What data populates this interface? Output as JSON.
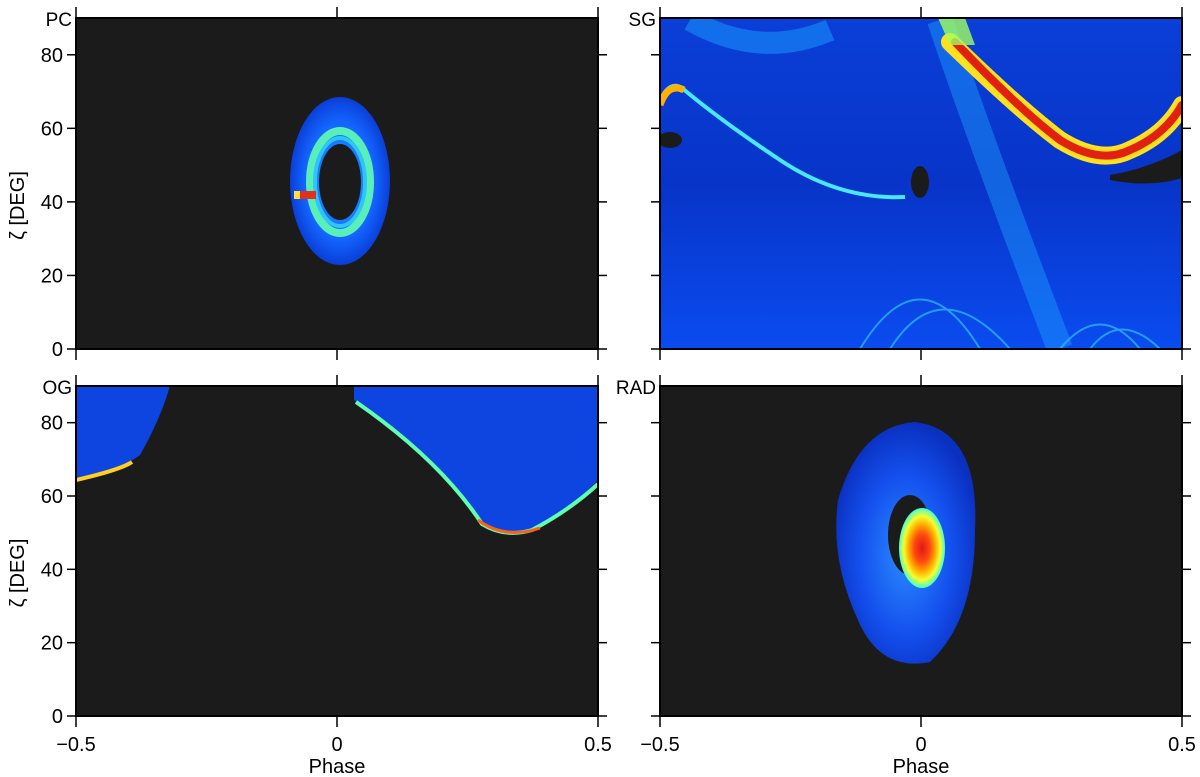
{
  "chart_data": [
    {
      "type": "heatmap",
      "panel_label": "PC",
      "xlabel": "",
      "ylabel": "ζ [DEG]",
      "xlim": [
        -0.5,
        0.5
      ],
      "ylim": [
        0,
        90
      ],
      "x_ticks": [
        -0.5,
        0,
        0.5
      ],
      "x_tick_labels": [],
      "y_ticks": [
        0,
        20,
        40,
        60,
        80
      ],
      "y_tick_labels": [
        "0",
        "20",
        "40",
        "60",
        "80"
      ],
      "background_color": "#1b1b1b",
      "features": [
        {
          "kind": "ellipse-ring",
          "phase_center": 0.005,
          "zeta_center": 44,
          "phase_radius": 0.09,
          "zeta_radius": 25,
          "intensity": 0.35
        },
        {
          "kind": "ring",
          "phase_center": 0.005,
          "zeta_center": 44,
          "phase_radius": 0.055,
          "zeta_radius": 12,
          "intensity": 0.55
        },
        {
          "kind": "spot",
          "phase": -0.05,
          "zeta": 42,
          "intensity": 1.0
        }
      ]
    },
    {
      "type": "heatmap",
      "panel_label": "SG",
      "xlabel": "",
      "ylabel": "",
      "xlim": [
        -0.5,
        0.5
      ],
      "ylim": [
        0,
        90
      ],
      "x_ticks": [
        -0.5,
        0,
        0.5
      ],
      "x_tick_labels": [],
      "y_ticks": [
        0,
        20,
        40,
        60,
        80
      ],
      "y_tick_labels": [],
      "background_color": "#0b4fe8",
      "features": [
        {
          "kind": "caustic-curve",
          "points": [
            [
              -0.5,
              66
            ],
            [
              -0.48,
              72
            ],
            [
              -0.4,
              64
            ],
            [
              -0.3,
              55
            ],
            [
              -0.2,
              47
            ],
            [
              -0.1,
              42
            ],
            [
              -0.02,
              42
            ]
          ],
          "intensity": 0.5
        },
        {
          "kind": "caustic-curve",
          "points": [
            [
              0.06,
              84
            ],
            [
              0.1,
              78
            ],
            [
              0.2,
              68
            ],
            [
              0.28,
              58
            ],
            [
              0.35,
              53
            ],
            [
              0.42,
              55
            ],
            [
              0.5,
              65
            ]
          ],
          "intensity": 1.0
        },
        {
          "kind": "void",
          "phase": -0.002,
          "zeta": 45,
          "intensity": 0.0
        }
      ]
    },
    {
      "type": "heatmap",
      "panel_label": "OG",
      "xlabel": "Phase",
      "ylabel": "ζ [DEG]",
      "xlim": [
        -0.5,
        0.5
      ],
      "ylim": [
        0,
        90
      ],
      "x_ticks": [
        -0.5,
        0,
        0.5
      ],
      "x_tick_labels": [
        "−0.5",
        "0",
        "0.5"
      ],
      "y_ticks": [
        0,
        20,
        40,
        60,
        80
      ],
      "y_tick_labels": [
        "0",
        "20",
        "40",
        "60",
        "80"
      ],
      "background_color": "#1b1b1b",
      "features": [
        {
          "kind": "emission-region",
          "edge": [
            [
              -0.5,
              61
            ],
            [
              -0.42,
              67
            ],
            [
              -0.37,
              74
            ],
            [
              -0.33,
              86
            ],
            [
              -0.32,
              90
            ]
          ],
          "intensity": 0.3
        },
        {
          "kind": "emission-region",
          "edge": [
            [
              0.07,
              90
            ],
            [
              0.08,
              86
            ],
            [
              0.18,
              75
            ],
            [
              0.26,
              62
            ],
            [
              0.32,
              52
            ],
            [
              0.36,
              50
            ],
            [
              0.44,
              55
            ],
            [
              0.5,
              62
            ]
          ],
          "intensity": 0.3
        }
      ]
    },
    {
      "type": "heatmap",
      "panel_label": "RAD",
      "xlabel": "Phase",
      "ylabel": "",
      "xlim": [
        -0.5,
        0.5
      ],
      "ylim": [
        0,
        90
      ],
      "x_ticks": [
        -0.5,
        0,
        0.5
      ],
      "x_tick_labels": [
        "−0.5",
        "0",
        "0.5"
      ],
      "y_ticks": [
        0,
        20,
        40,
        60,
        80
      ],
      "y_tick_labels": [],
      "background_color": "#1b1b1b",
      "features": [
        {
          "kind": "halo",
          "phase_center": -0.01,
          "zeta_center": 51,
          "phase_radius": 0.16,
          "zeta_radius": 36,
          "intensity": 0.3
        },
        {
          "kind": "void",
          "phase": -0.01,
          "zeta": 47,
          "intensity": 0.0
        },
        {
          "kind": "hot-core",
          "phase": 0.005,
          "zeta": 46,
          "intensity": 1.0
        }
      ]
    }
  ]
}
